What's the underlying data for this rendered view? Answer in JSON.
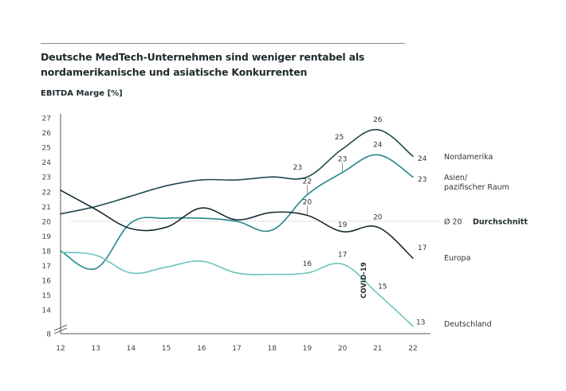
{
  "chart_data": {
    "type": "line",
    "title": "Deutsche MedTech-Unternehmen sind weniger rentabel als nordamerikanische und asiatische Konkurrenten",
    "ylabel": "EBITDA Marge [%]",
    "xlabel": "",
    "x": [
      "12",
      "13",
      "14",
      "15",
      "16",
      "17",
      "18",
      "19",
      "20",
      "21",
      "22"
    ],
    "yticks": [
      "27",
      "26",
      "25",
      "24",
      "23",
      "22",
      "21",
      "20",
      "19",
      "18",
      "17",
      "16",
      "15",
      "14",
      "8"
    ],
    "ylim": [
      8,
      27
    ],
    "axis_break": "between 8 and 13",
    "grid": false,
    "legend_placement": "right (labels at line ends)",
    "series": [
      {
        "name": "Nordamerika",
        "color": "#1f4a4c",
        "values": [
          20.5,
          21.0,
          21.7,
          22.4,
          22.8,
          22.8,
          23.0,
          23.0,
          24.9,
          26.2,
          24.4
        ],
        "labels": [
          {
            "x": "19",
            "text": "23"
          },
          {
            "x": "20",
            "text": "25"
          },
          {
            "x": "21",
            "text": "26"
          },
          {
            "x": "22",
            "text": "24"
          }
        ]
      },
      {
        "name": "Asien/ pazifischer Raum",
        "legend_lines": [
          "Asien/",
          "pazifischer Raum"
        ],
        "color": "#24888a",
        "values": [
          18.0,
          16.8,
          19.9,
          20.2,
          20.2,
          20.0,
          19.4,
          21.8,
          23.3,
          24.5,
          23.0
        ],
        "labels": [
          {
            "x": "19",
            "text": "22"
          },
          {
            "x": "20",
            "text": "23"
          },
          {
            "x": "21",
            "text": "24"
          },
          {
            "x": "22",
            "text": "23"
          }
        ]
      },
      {
        "name": "Europa",
        "color": "#1b2c33",
        "values": [
          22.1,
          20.8,
          19.5,
          19.6,
          20.9,
          20.1,
          20.6,
          20.4,
          19.3,
          19.6,
          17.5
        ],
        "labels": [
          {
            "x": "19",
            "text": "20"
          },
          {
            "x": "20",
            "text": "19"
          },
          {
            "x": "21",
            "text": "20"
          },
          {
            "x": "22",
            "text": "17"
          }
        ]
      },
      {
        "name": "Deutschland",
        "color": "#6cc4bd",
        "values": [
          17.9,
          17.7,
          16.5,
          16.9,
          17.3,
          16.5,
          16.4,
          16.5,
          17.1,
          15.1,
          12.9
        ],
        "labels": [
          {
            "x": "19",
            "text": "16"
          },
          {
            "x": "20",
            "text": "17"
          },
          {
            "x": "21",
            "text": "15"
          },
          {
            "x": "22",
            "text": "13"
          }
        ]
      }
    ],
    "reference_line": {
      "value": 20,
      "label_value": "Ø 20",
      "label": "Durchschnitt",
      "color": "#e2e2e2"
    },
    "annotations": [
      {
        "x": "20.6",
        "text": "COVID-19",
        "orientation": "vertical"
      }
    ]
  }
}
